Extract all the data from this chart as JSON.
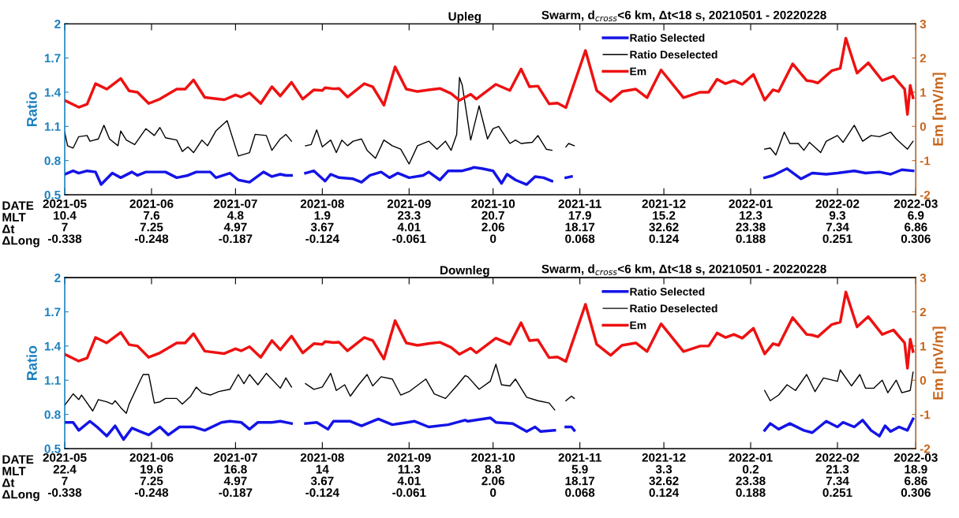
{
  "chart_data": [
    {
      "type": "line",
      "title": "Upleg",
      "subtitle": "Swarm, d$_{cross}$<6 km, Δt<18 s, 20210501 - 20220228",
      "ylabel": "Ratio",
      "y2label": "Em [mV/m]",
      "annotations": [
        "DATE",
        "MLT",
        "Δt",
        "ΔLong"
      ],
      "xlim": [
        "2021-05-01",
        "2022-03-01"
      ],
      "xticks": [
        {
          "value": "2021-05-01",
          "label": "2021-05\n10.4\n7\n-0.338"
        },
        {
          "value": "2021-06-01",
          "label": "2021-06\n7.6\n7.25\n-0.248"
        },
        {
          "value": "2021-07-01",
          "label": "2021-07\n4.8\n4.97\n-0.187"
        },
        {
          "value": "2021-08-01",
          "label": "2021-08\n1.9\n3.67\n-0.124"
        },
        {
          "value": "2021-09-01",
          "label": "2021-09\n23.3\n4.01\n-0.061"
        },
        {
          "value": "2021-10-01",
          "label": "2021-10\n20.7\n2.06\n0"
        },
        {
          "value": "2021-11-01",
          "label": "2021-11\n17.9\n18.17\n0.068"
        },
        {
          "value": "2021-12-01",
          "label": "2021-12\n15.2\n32.62\n0.124"
        },
        {
          "value": "2022-01-01",
          "label": "2022-01\n12.3\n23.38\n0.188"
        },
        {
          "value": "2022-02-01",
          "label": "2022-02\n9.3\n7.34\n0.251"
        },
        {
          "value": "2022-03-01",
          "label": "2022-03\n6.9\n6.86\n0.306"
        }
      ],
      "ylim": [
        0.5,
        2
      ],
      "yticks": [
        0.5,
        0.8,
        1.1,
        1.4,
        1.7,
        2
      ],
      "y2lim": [
        -2,
        3
      ],
      "y2ticks": [
        -2,
        -1,
        0,
        1,
        2,
        3
      ],
      "legend": "top",
      "grid": false,
      "marker": "none",
      "line_style": "solid",
      "series": [
        {
          "name": "Ratio Selected",
          "color": "#1414e6",
          "x": [
            "2021-05-01",
            "2021-05-04",
            "2021-05-06",
            "2021-05-09",
            "2021-05-12",
            "2021-05-14",
            "2021-05-18",
            "2021-05-21",
            "2021-05-25",
            "2021-05-27",
            "2021-05-30",
            "2021-06-06",
            "2021-06-10",
            "2021-06-14",
            "2021-06-17",
            "2021-06-22",
            "2021-06-24",
            "2021-06-29",
            "2021-07-02",
            "2021-07-06",
            "2021-07-11",
            "2021-07-14",
            "2021-07-17",
            "2021-07-19",
            "2021-07-21",
            "2021-07-24",
            "2021-07-26",
            "2021-07-29",
            "2021-08-02",
            "2021-08-04",
            "2021-08-07",
            "2021-08-12",
            "2021-08-15",
            "2021-08-18",
            "2021-08-22",
            "2021-08-25",
            "2021-08-28",
            "2021-09-01",
            "2021-09-06",
            "2021-09-08",
            "2021-09-12",
            "2021-09-15",
            "2021-09-20",
            "2021-09-23",
            "2021-09-24",
            "2021-09-27",
            "2021-10-01",
            "2021-10-04",
            "2021-10-06",
            "2021-10-09",
            "2021-10-13",
            "2021-10-16",
            "2021-10-19",
            "2021-10-22",
            "2021-10-25",
            "2021-10-27",
            "2021-10-29",
            "2021-11-15",
            "2022-01-06",
            "2022-01-09",
            "2022-01-14",
            "2022-01-19",
            "2022-01-23",
            "2022-01-28",
            "2022-02-01",
            "2022-02-07",
            "2022-02-11",
            "2022-02-16",
            "2022-02-20",
            "2022-02-24",
            "2022-02-28"
          ],
          "values": [
            0.68,
            0.71,
            0.69,
            0.71,
            0.7,
            0.59,
            0.69,
            0.65,
            0.7,
            0.67,
            0.7,
            0.7,
            0.65,
            0.67,
            0.7,
            0.7,
            0.65,
            0.69,
            0.63,
            0.61,
            0.7,
            0.66,
            0.68,
            0.67,
            0.67,
            null,
            0.69,
            0.71,
            0.62,
            0.68,
            0.65,
            0.64,
            0.61,
            0.67,
            0.7,
            0.65,
            0.69,
            0.65,
            0.67,
            0.7,
            0.63,
            0.71,
            0.71,
            0.73,
            0.74,
            0.73,
            0.71,
            0.6,
            0.68,
            0.63,
            0.59,
            0.66,
            0.65,
            0.62,
            null,
            0.65,
            0.66,
            null,
            0.65,
            0.67,
            0.73,
            0.64,
            0.69,
            0.68,
            0.69,
            0.71,
            0.69,
            0.7,
            0.68,
            0.72,
            0.71
          ]
        },
        {
          "name": "Ratio Deselected",
          "color": "#000000",
          "x": [
            "2021-05-01",
            "2021-05-02",
            "2021-05-04",
            "2021-05-06",
            "2021-05-09",
            "2021-05-10",
            "2021-05-13",
            "2021-05-15",
            "2021-05-17",
            "2021-05-20",
            "2021-05-21",
            "2021-05-23",
            "2021-05-26",
            "2021-05-30",
            "2021-06-02",
            "2021-06-04",
            "2021-06-06",
            "2021-06-10",
            "2021-06-12",
            "2021-06-14",
            "2021-06-16",
            "2021-06-19",
            "2021-06-21",
            "2021-06-24",
            "2021-06-28",
            "2021-07-02",
            "2021-07-06",
            "2021-07-08",
            "2021-07-12",
            "2021-07-14",
            "2021-07-17",
            "2021-07-19",
            "2021-07-21",
            "2021-07-24",
            "2021-07-26",
            "2021-07-28",
            "2021-07-30",
            "2021-08-01",
            "2021-08-04",
            "2021-08-06",
            "2021-08-08",
            "2021-08-10",
            "2021-08-12",
            "2021-08-15",
            "2021-08-17",
            "2021-08-20",
            "2021-08-23",
            "2021-08-26",
            "2021-08-29",
            "2021-09-01",
            "2021-09-04",
            "2021-09-08",
            "2021-09-11",
            "2021-09-14",
            "2021-09-16",
            "2021-09-18",
            "2021-09-19",
            "2021-09-20",
            "2021-09-23",
            "2021-09-26",
            "2021-09-29",
            "2021-10-01",
            "2021-10-03",
            "2021-10-07",
            "2021-10-09",
            "2021-10-11",
            "2021-10-15",
            "2021-10-17",
            "2021-10-20",
            "2021-10-22",
            "2021-10-25",
            "2021-10-27",
            "2021-10-28",
            "2021-10-30",
            "2021-11-15",
            "2022-01-06",
            "2022-01-08",
            "2022-01-10",
            "2022-01-13",
            "2022-01-15",
            "2022-01-18",
            "2022-01-20",
            "2022-01-22",
            "2022-01-26",
            "2022-01-28",
            "2022-02-01",
            "2022-02-03",
            "2022-02-07",
            "2022-02-10",
            "2022-02-13",
            "2022-02-16",
            "2022-02-20",
            "2022-02-22",
            "2022-02-26",
            "2022-02-28"
          ],
          "values": [
            1.05,
            0.93,
            0.91,
            1.01,
            1.02,
            0.97,
            0.99,
            1.11,
            0.99,
            0.93,
            1.06,
            0.98,
            0.94,
            1.08,
            1.02,
            1.09,
            1.0,
            0.98,
            0.88,
            0.92,
            0.87,
            0.98,
            0.93,
            1.06,
            1.15,
            0.84,
            0.87,
            1.03,
            1.02,
            0.89,
            0.99,
            1.03,
            0.97,
            null,
            0.93,
            0.94,
            1.07,
            0.92,
            0.98,
            0.87,
            0.98,
            0.93,
            0.97,
            0.99,
            0.89,
            0.82,
            0.98,
            0.93,
            0.9,
            0.77,
            0.93,
            0.97,
            0.9,
            0.97,
            0.89,
            1.03,
            1.53,
            1.46,
            0.98,
            1.28,
            0.99,
            1.08,
            1.1,
            0.95,
            0.98,
            0.95,
            0.96,
            1.02,
            0.9,
            0.89,
            null,
            0.92,
            0.95,
            0.93,
            null,
            0.9,
            0.91,
            0.85,
            1.05,
            0.95,
            0.95,
            0.89,
            0.96,
            0.87,
            0.97,
            1.02,
            0.96,
            1.11,
            0.97,
            1.02,
            1.01,
            1.05,
            0.99,
            0.9,
            0.97
          ]
        },
        {
          "name": "Em",
          "color": "#ee1111",
          "axis": "y2",
          "x": [
            "2021-05-01",
            "2021-05-06",
            "2021-05-09",
            "2021-05-12",
            "2021-05-16",
            "2021-05-21",
            "2021-05-24",
            "2021-05-27",
            "2021-05-31",
            "2021-06-04",
            "2021-06-10",
            "2021-06-13",
            "2021-06-16",
            "2021-06-20",
            "2021-06-27",
            "2021-07-01",
            "2021-07-03",
            "2021-07-06",
            "2021-07-10",
            "2021-07-14",
            "2021-07-17",
            "2021-07-21",
            "2021-07-25",
            "2021-07-29",
            "2021-08-01",
            "2021-08-02",
            "2021-08-05",
            "2021-08-07",
            "2021-08-10",
            "2021-08-16",
            "2021-08-19",
            "2021-08-23",
            "2021-08-27",
            "2021-08-31",
            "2021-09-04",
            "2021-09-08",
            "2021-09-12",
            "2021-09-16",
            "2021-09-19",
            "2021-09-23",
            "2021-09-25",
            "2021-10-02",
            "2021-10-07",
            "2021-10-11",
            "2021-10-14",
            "2021-10-17",
            "2021-10-21",
            "2021-10-24",
            "2021-10-27",
            "2021-11-03",
            "2021-11-07",
            "2021-11-12",
            "2021-11-16",
            "2021-11-21",
            "2021-11-25",
            "2021-11-30",
            "2021-12-08",
            "2021-12-14",
            "2021-12-17",
            "2021-12-20",
            "2021-12-23",
            "2021-12-26",
            "2021-12-29",
            "2022-01-02",
            "2022-01-06",
            "2022-01-09",
            "2022-01-11",
            "2022-01-16",
            "2022-01-21",
            "2022-01-23",
            "2022-01-25",
            "2022-01-30",
            "2022-02-02",
            "2022-02-04",
            "2022-02-08",
            "2022-02-12",
            "2022-02-17",
            "2022-02-21",
            "2022-02-25",
            "2022-02-26",
            "2022-02-27",
            "2022-02-28"
          ],
          "values": [
            0.76,
            0.56,
            0.65,
            1.25,
            1.09,
            1.4,
            1.04,
            1.0,
            0.67,
            0.8,
            1.09,
            1.09,
            1.36,
            0.85,
            0.78,
            0.92,
            0.86,
            0.98,
            0.67,
            1.16,
            0.89,
            1.29,
            0.8,
            1.07,
            1.05,
            1.13,
            1.1,
            1.11,
            0.86,
            1.25,
            1.16,
            0.62,
            1.74,
            1.09,
            1.02,
            1.07,
            1.11,
            0.96,
            0.76,
            0.94,
            0.8,
            1.23,
            1.05,
            1.68,
            1.16,
            1.18,
            0.66,
            0.68,
            0.55,
            2.22,
            1.05,
            0.73,
            1.02,
            1.09,
            0.84,
            1.65,
            0.84,
            1.0,
            1.0,
            1.38,
            1.25,
            1.34,
            1.23,
            1.52,
            0.77,
            1.07,
            1.02,
            1.83,
            1.34,
            1.32,
            1.27,
            1.63,
            1.7,
            2.58,
            1.56,
            1.86,
            1.34,
            1.47,
            1.09,
            0.35,
            1.2,
            0.84
          ]
        }
      ]
    },
    {
      "type": "line",
      "title": "Downleg",
      "subtitle": "Swarm, d$_{cross}$<6 km, Δt<18 s, 20210501 - 20220228",
      "ylabel": "Ratio",
      "y2label": "Em [mV/m]",
      "annotations": [
        "DATE",
        "MLT",
        "Δt",
        "ΔLong"
      ],
      "xlim": [
        "2021-05-01",
        "2022-03-01"
      ],
      "xticks": [
        {
          "value": "2021-05-01",
          "label": "2021-05\n22.4\n7\n-0.338"
        },
        {
          "value": "2021-06-01",
          "label": "2021-06\n19.6\n7.25\n-0.248"
        },
        {
          "value": "2021-07-01",
          "label": "2021-07\n16.8\n4.97\n-0.187"
        },
        {
          "value": "2021-08-01",
          "label": "2021-08\n14\n3.67\n-0.124"
        },
        {
          "value": "2021-09-01",
          "label": "2021-09\n11.3\n4.01\n-0.061"
        },
        {
          "value": "2021-10-01",
          "label": "2021-10\n8.8\n2.06\n0"
        },
        {
          "value": "2021-11-01",
          "label": "2021-11\n5.9\n18.17\n0.068"
        },
        {
          "value": "2021-12-01",
          "label": "2021-12\n3.3\n32.62\n0.124"
        },
        {
          "value": "2022-01-01",
          "label": "2022-01\n0.2\n23.38\n0.188"
        },
        {
          "value": "2022-02-01",
          "label": "2022-02\n21.3\n7.34\n0.251"
        },
        {
          "value": "2022-03-01",
          "label": "2022-03\n18.9\n6.86\n0.306"
        }
      ],
      "ylim": [
        0.5,
        2
      ],
      "yticks": [
        0.5,
        0.8,
        1.1,
        1.4,
        1.7,
        2
      ],
      "y2lim": [
        -2,
        3
      ],
      "y2ticks": [
        -2,
        -1,
        0,
        1,
        2,
        3
      ],
      "legend": "top",
      "grid": false,
      "marker": "none",
      "line_style": "solid",
      "series": [
        {
          "name": "Ratio Selected",
          "color": "#1414e6",
          "x": [
            "2021-05-01",
            "2021-05-04",
            "2021-05-06",
            "2021-05-10",
            "2021-05-13",
            "2021-05-16",
            "2021-05-19",
            "2021-05-22",
            "2021-05-25",
            "2021-05-28",
            "2021-05-31",
            "2021-06-04",
            "2021-06-07",
            "2021-06-11",
            "2021-06-16",
            "2021-06-20",
            "2021-06-26",
            "2021-06-29",
            "2021-07-03",
            "2021-07-06",
            "2021-07-09",
            "2021-07-14",
            "2021-07-17",
            "2021-07-21",
            "2021-07-24",
            "2021-07-26",
            "2021-07-30",
            "2021-08-03",
            "2021-08-05",
            "2021-08-11",
            "2021-08-15",
            "2021-08-21",
            "2021-08-26",
            "2021-09-03",
            "2021-09-08",
            "2021-09-15",
            "2021-09-21",
            "2021-09-22",
            "2021-09-30",
            "2021-10-02",
            "2021-10-08",
            "2021-10-13",
            "2021-10-16",
            "2021-10-18",
            "2021-10-23",
            "2021-10-25",
            "2021-10-27",
            "2021-10-29",
            "2021-10-30",
            "2021-11-15",
            "2022-01-06",
            "2022-01-08",
            "2022-01-11",
            "2022-01-15",
            "2022-01-20",
            "2022-01-23",
            "2022-01-28",
            "2022-02-01",
            "2022-02-03",
            "2022-02-07",
            "2022-02-10",
            "2022-02-13",
            "2022-02-16",
            "2022-02-18",
            "2022-02-20",
            "2022-02-23",
            "2022-02-26",
            "2022-02-28"
          ],
          "values": [
            0.73,
            0.73,
            0.66,
            0.74,
            0.68,
            0.61,
            0.7,
            0.58,
            0.68,
            0.65,
            0.62,
            0.69,
            0.62,
            0.69,
            0.69,
            0.66,
            0.73,
            0.74,
            0.73,
            0.67,
            0.73,
            0.73,
            0.74,
            0.72,
            null,
            0.72,
            0.73,
            0.67,
            0.74,
            0.74,
            0.7,
            0.76,
            0.71,
            0.74,
            0.69,
            0.71,
            0.75,
            0.74,
            0.77,
            0.73,
            0.72,
            0.65,
            0.69,
            0.65,
            0.66,
            null,
            0.69,
            0.69,
            0.66,
            null,
            0.66,
            0.72,
            0.67,
            0.72,
            0.66,
            0.64,
            0.74,
            0.69,
            0.73,
            0.69,
            0.75,
            0.66,
            0.61,
            0.7,
            0.65,
            0.69,
            0.66,
            0.76
          ]
        },
        {
          "name": "Ratio Deselected",
          "color": "#000000",
          "x": [
            "2021-05-01",
            "2021-05-04",
            "2021-05-06",
            "2021-05-07",
            "2021-05-11",
            "2021-05-13",
            "2021-05-16",
            "2021-05-18",
            "2021-05-19",
            "2021-05-21",
            "2021-05-23",
            "2021-05-24",
            "2021-05-28",
            "2021-05-29",
            "2021-05-31",
            "2021-06-02",
            "2021-06-04",
            "2021-06-06",
            "2021-06-10",
            "2021-06-12",
            "2021-06-15",
            "2021-06-17",
            "2021-06-19",
            "2021-06-22",
            "2021-06-25",
            "2021-06-29",
            "2021-07-02",
            "2021-07-04",
            "2021-07-06",
            "2021-07-09",
            "2021-07-12",
            "2021-07-17",
            "2021-07-19",
            "2021-07-21",
            "2021-07-24",
            "2021-07-26",
            "2021-07-29",
            "2021-08-01",
            "2021-08-04",
            "2021-08-06",
            "2021-08-09",
            "2021-08-11",
            "2021-08-14",
            "2021-08-17",
            "2021-08-19",
            "2021-08-22",
            "2021-08-26",
            "2021-08-29",
            "2021-09-01",
            "2021-09-07",
            "2021-09-10",
            "2021-09-14",
            "2021-09-18",
            "2021-09-21",
            "2021-09-22",
            "2021-09-26",
            "2021-09-30",
            "2021-10-02",
            "2021-10-04",
            "2021-10-07",
            "2021-10-09",
            "2021-10-13",
            "2021-10-17",
            "2021-10-21",
            "2021-10-23",
            "2021-10-25",
            "2021-10-27",
            "2021-10-29",
            "2021-10-30",
            "2021-11-15",
            "2022-01-06",
            "2022-01-08",
            "2022-01-11",
            "2022-01-14",
            "2022-01-17",
            "2022-01-21",
            "2022-01-24",
            "2022-01-27",
            "2022-02-01",
            "2022-02-02",
            "2022-02-06",
            "2022-02-09",
            "2022-02-11",
            "2022-02-14",
            "2022-02-17",
            "2022-02-19",
            "2022-02-22",
            "2022-02-24",
            "2022-02-27",
            "2022-02-28"
          ],
          "values": [
            0.88,
            0.98,
            0.93,
            0.97,
            0.83,
            0.93,
            0.91,
            0.89,
            0.92,
            0.86,
            0.81,
            0.89,
            1.1,
            1.15,
            1.15,
            0.9,
            0.91,
            0.94,
            0.94,
            0.89,
            0.96,
            1.04,
            0.99,
            0.97,
            1.0,
            1.02,
            1.15,
            1.07,
            1.15,
            1.06,
            1.16,
            1.03,
            1.12,
            1.04,
            null,
            1.07,
            1.02,
            1.04,
            1.16,
            1.01,
            1.06,
            0.96,
            1.06,
            1.15,
            1.05,
            1.13,
            1.11,
            0.97,
            1.0,
            1.11,
            0.98,
            0.94,
            1.05,
            1.14,
            1.13,
            1.02,
            1.09,
            1.24,
            1.06,
            1.05,
            1.11,
            0.95,
            0.92,
            0.9,
            0.84,
            null,
            0.92,
            0.96,
            0.94,
            null,
            1.01,
            0.92,
            0.97,
            1.06,
            1.01,
            1.15,
            1.0,
            1.12,
            1.09,
            1.19,
            1.05,
            1.15,
            1.03,
            1.03,
            1.1,
            0.99,
            1.1,
            0.99,
            1.01,
            1.17
          ]
        },
        {
          "name": "Em",
          "color": "#ee1111",
          "axis": "y2",
          "x": [
            "2021-05-01",
            "2021-05-06",
            "2021-05-09",
            "2021-05-12",
            "2021-05-16",
            "2021-05-21",
            "2021-05-24",
            "2021-05-27",
            "2021-05-31",
            "2021-06-04",
            "2021-06-10",
            "2021-06-13",
            "2021-06-16",
            "2021-06-20",
            "2021-06-27",
            "2021-07-01",
            "2021-07-03",
            "2021-07-06",
            "2021-07-10",
            "2021-07-14",
            "2021-07-17",
            "2021-07-21",
            "2021-07-25",
            "2021-07-29",
            "2021-08-01",
            "2021-08-02",
            "2021-08-05",
            "2021-08-07",
            "2021-08-10",
            "2021-08-16",
            "2021-08-19",
            "2021-08-23",
            "2021-08-27",
            "2021-08-31",
            "2021-09-04",
            "2021-09-08",
            "2021-09-12",
            "2021-09-16",
            "2021-09-19",
            "2021-09-23",
            "2021-09-25",
            "2021-10-02",
            "2021-10-07",
            "2021-10-11",
            "2021-10-14",
            "2021-10-17",
            "2021-10-21",
            "2021-10-24",
            "2021-10-27",
            "2021-11-03",
            "2021-11-07",
            "2021-11-12",
            "2021-11-16",
            "2021-11-21",
            "2021-11-25",
            "2021-11-30",
            "2021-12-08",
            "2021-12-14",
            "2021-12-17",
            "2021-12-20",
            "2021-12-23",
            "2021-12-26",
            "2021-12-29",
            "2022-01-02",
            "2022-01-06",
            "2022-01-09",
            "2022-01-11",
            "2022-01-16",
            "2022-01-21",
            "2022-01-23",
            "2022-01-25",
            "2022-01-30",
            "2022-02-02",
            "2022-02-04",
            "2022-02-08",
            "2022-02-12",
            "2022-02-17",
            "2022-02-21",
            "2022-02-25",
            "2022-02-26",
            "2022-02-27",
            "2022-02-28"
          ],
          "values": [
            0.76,
            0.56,
            0.65,
            1.25,
            1.09,
            1.4,
            1.04,
            1.0,
            0.67,
            0.8,
            1.09,
            1.09,
            1.36,
            0.85,
            0.78,
            0.92,
            0.86,
            0.98,
            0.67,
            1.16,
            0.89,
            1.29,
            0.8,
            1.07,
            1.05,
            1.13,
            1.1,
            1.11,
            0.86,
            1.25,
            1.16,
            0.62,
            1.74,
            1.09,
            1.02,
            1.07,
            1.11,
            0.96,
            0.76,
            0.94,
            0.8,
            1.23,
            1.05,
            1.68,
            1.16,
            1.18,
            0.66,
            0.68,
            0.55,
            2.22,
            1.05,
            0.73,
            1.02,
            1.09,
            0.84,
            1.65,
            0.84,
            1.0,
            1.0,
            1.38,
            1.25,
            1.34,
            1.23,
            1.52,
            0.77,
            1.07,
            1.02,
            1.83,
            1.34,
            1.32,
            1.27,
            1.63,
            1.7,
            2.58,
            1.56,
            1.86,
            1.34,
            1.47,
            1.09,
            0.35,
            1.2,
            0.84
          ]
        }
      ]
    }
  ]
}
